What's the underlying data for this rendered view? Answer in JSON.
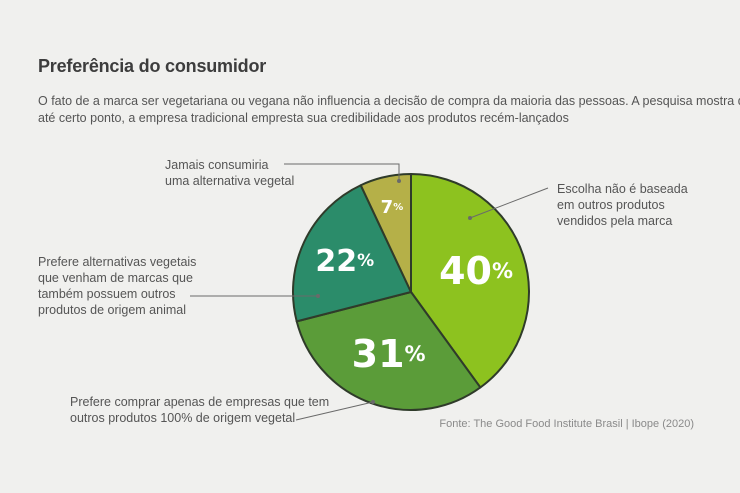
{
  "header": {
    "title": "Preferência do consumidor",
    "subtitle_lines": [
      "O fato de a marca ser vegetariana ou vegana não influencia a decisão de compra da maioria das pessoas. A pesquisa mostra que,",
      "até certo ponto, a empresa tradicional empresta sua credibilidade aos produtos recém-lançados"
    ]
  },
  "source": "Fonte: The Good Food Institute Brasil | Ibope (2020)",
  "colors": {
    "background": "#f0f0ee",
    "outline": "#2f3b2a",
    "leader": "#6a6a6a",
    "slice_text": "#ffffff"
  },
  "chart_data": {
    "type": "pie",
    "slices": [
      {
        "value": 40,
        "label": "40%",
        "color": "#8dc21f",
        "category_lines": [
          "Escolha não é baseada",
          "em outros produtos",
          "vendidos pela marca"
        ]
      },
      {
        "value": 31,
        "label": "31%",
        "color": "#5b9c39",
        "category_lines": [
          "Prefere comprar apenas de empresas que tem",
          "outros produtos 100% de origem vegetal"
        ]
      },
      {
        "value": 22,
        "label": "22%",
        "color": "#2b8c6a",
        "category_lines": [
          "Prefere alternativas vegetais",
          "que venham de marcas que",
          "também possuem outros",
          "produtos de origem animal"
        ]
      },
      {
        "value": 7,
        "label": "7%",
        "color": "#b5b048",
        "category_lines": [
          "Jamais consumiria",
          "uma alternativa vegetal"
        ]
      }
    ]
  }
}
